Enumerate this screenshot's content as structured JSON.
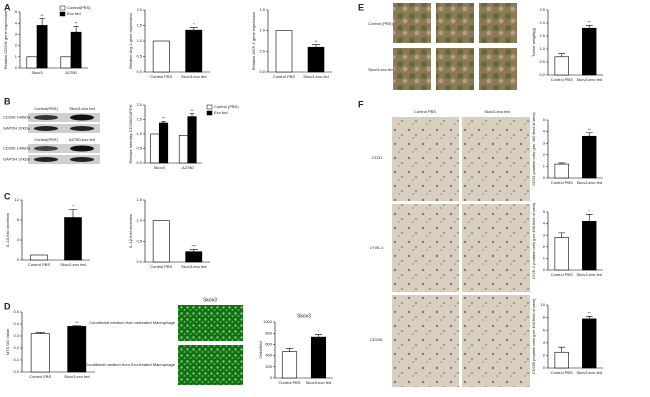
{
  "panel_labels": [
    "A",
    "B",
    "C",
    "D",
    "E",
    "F"
  ],
  "blot_labels": [
    "Control(PBS)",
    "Skov3-exo fed",
    "CD206 140kDa",
    "GAPDH 37kDa",
    "Control(PBS)",
    "A2780-exo fed",
    "CD206 140kDa",
    "GAPDH 37kDa"
  ],
  "fluorescence": {
    "title": "Skov3",
    "captions": [
      "Conditional medium from untreated Macrophage",
      "Conditional medium from Exo-treated Macrophage"
    ]
  },
  "tumor_labels": [
    "Control (PBS)",
    "Skov3-exo fed"
  ],
  "ihc": {
    "columns": [
      "Control PBS",
      "Skov3-exo fed"
    ],
    "rows": [
      "CD31",
      "LYVE-1",
      "CD206"
    ]
  },
  "chart_data": [
    {
      "type": "bar",
      "ylabel": "Relative CD206 gene expression",
      "categories": [
        "Skov3",
        "A2780"
      ],
      "series": [
        {
          "name": "Control(PBS)",
          "color": "#ffffff",
          "values": [
            1,
            1
          ],
          "errors": [
            0,
            0
          ]
        },
        {
          "name": "Exo fed",
          "color": "#000000",
          "values": [
            3.8,
            3.2
          ],
          "errors": [
            0.6,
            0.5
          ]
        }
      ],
      "significance": [
        "**",
        "**"
      ],
      "ylim": [
        0,
        5
      ],
      "yticks": [
        0,
        1,
        2,
        3,
        4,
        5
      ]
    },
    {
      "type": "bar",
      "ylabel": "Relative Arg-1 gene expression",
      "categories": [
        "Control PBS",
        "Skov3-exo fed"
      ],
      "values": [
        1,
        1.35
      ],
      "errors": [
        0,
        0.08
      ],
      "colors": [
        "#ffffff",
        "#000000"
      ],
      "significance": "*",
      "ylim": [
        0,
        2
      ],
      "yticks": [
        {
          "value": 0,
          "label": "0.0"
        },
        {
          "value": 0.5,
          "label": "0.5"
        },
        {
          "value": 1,
          "label": "1.0"
        },
        {
          "value": 1.5,
          "label": "1.5"
        },
        {
          "value": 2,
          "label": "2.0"
        }
      ]
    },
    {
      "type": "bar",
      "ylabel": "Relative MCP-1 gene expression",
      "categories": [
        "Control PBS",
        "Skov3-exo fed"
      ],
      "values": [
        1,
        0.6
      ],
      "errors": [
        0,
        0.06
      ],
      "colors": [
        "#ffffff",
        "#000000"
      ],
      "significance": "**",
      "ylim": [
        0,
        1.5
      ],
      "yticks": [
        {
          "value": 0,
          "label": "0.0"
        },
        {
          "value": 0.5,
          "label": "0.5"
        },
        {
          "value": 1,
          "label": "1.0"
        },
        {
          "value": 1.5,
          "label": "1.5"
        }
      ]
    },
    {
      "type": "bar",
      "ylabel": "Relative intensity CD206/GAPDH",
      "categories": [
        "Skov3",
        "A2780"
      ],
      "series": [
        {
          "name": "Control (PBS)",
          "color": "#ffffff",
          "values": [
            1,
            0.95
          ],
          "errors": [
            0,
            0
          ]
        },
        {
          "name": "Exo fed",
          "color": "#000000",
          "values": [
            1.38,
            1.6
          ],
          "errors": [
            0.05,
            0.1
          ]
        }
      ],
      "significance": [
        "**",
        "**"
      ],
      "ylim": [
        0,
        2
      ],
      "yticks": [
        {
          "value": 0,
          "label": "0.0"
        },
        {
          "value": 0.5,
          "label": "0.5"
        },
        {
          "value": 1,
          "label": "1.0"
        },
        {
          "value": 1.5,
          "label": "1.5"
        },
        {
          "value": 2,
          "label": "2.0"
        }
      ]
    },
    {
      "type": "bar",
      "ylabel": "IL-10 fold secretion",
      "categories": [
        "Control PBS",
        "Skov3-exo fed"
      ],
      "values": [
        1,
        8.5
      ],
      "errors": [
        0,
        1.6
      ],
      "colors": [
        "#ffffff",
        "#000000"
      ],
      "significance": "*",
      "ylim": [
        0,
        12
      ],
      "yticks": [
        0,
        4,
        8,
        12
      ]
    },
    {
      "type": "bar",
      "ylabel": "IL-1β fold secretion",
      "categories": [
        "Control PBS",
        "Skov3-exo fed"
      ],
      "values": [
        1,
        0.25
      ],
      "errors": [
        0,
        0.05
      ],
      "colors": [
        "#ffffff",
        "#000000"
      ],
      "significance": "***",
      "ylim": [
        0,
        1.5
      ],
      "yticks": [
        {
          "value": 0,
          "label": "0.0"
        },
        {
          "value": 0.5,
          "label": "0.5"
        },
        {
          "value": 1,
          "label": "1.0"
        },
        {
          "value": 1.5,
          "label": "1.5"
        }
      ]
    },
    {
      "type": "bar",
      "ylabel": "MTS OD Value",
      "categories": [
        "Control PBS",
        "Skov3-exo fed"
      ],
      "values": [
        0.32,
        0.38
      ],
      "errors": [
        0.01,
        0.005
      ],
      "colors": [
        "#ffffff",
        "#000000"
      ],
      "significance": "**",
      "ylim": [
        0,
        0.5
      ],
      "yticks": [
        {
          "value": 0,
          "label": "0.0"
        },
        {
          "value": 0.1,
          "label": "0.1"
        },
        {
          "value": 0.2,
          "label": "0.2"
        },
        {
          "value": 0.3,
          "label": "0.3"
        },
        {
          "value": 0.4,
          "label": "0.4"
        },
        {
          "value": 0.5,
          "label": "0.5"
        }
      ]
    },
    {
      "type": "bar",
      "title": "Skov3",
      "ylabel": "Cells/field",
      "categories": [
        "Control PBS",
        "Skov3-exo fed"
      ],
      "values": [
        470,
        730
      ],
      "errors": [
        60,
        50
      ],
      "colors": [
        "#ffffff",
        "#000000"
      ],
      "significance": "*",
      "ylim": [
        0,
        1000
      ],
      "yticks": [
        0,
        200,
        400,
        600,
        800,
        1000
      ]
    },
    {
      "type": "bar",
      "ylabel": "Tumor weight(g)",
      "categories": [
        "Control PBS",
        "Skov3-exo fed"
      ],
      "values": [
        0.7,
        1.8
      ],
      "errors": [
        0.12,
        0.1
      ],
      "colors": [
        "#ffffff",
        "#000000"
      ],
      "significance": "**",
      "ylim": [
        0,
        2.5
      ],
      "yticks": [
        {
          "value": 0,
          "label": "0.0"
        },
        {
          "value": 0.5,
          "label": "0.5"
        },
        {
          "value": 1,
          "label": "1.0"
        },
        {
          "value": 1.5,
          "label": "1.5"
        },
        {
          "value": 2,
          "label": "2.0"
        },
        {
          "value": 2.5,
          "label": "2.5"
        }
      ]
    },
    {
      "type": "bar",
      "ylabel": "CD31 positive cells (per 400 field of view)",
      "categories": [
        "Control PBS",
        "Skov3-exo fed"
      ],
      "values": [
        1.2,
        3.6
      ],
      "errors": [
        0.1,
        0.3
      ],
      "colors": [
        "#ffffff",
        "#000000"
      ],
      "significance": "**",
      "ylim": [
        0,
        5
      ],
      "yticks": [
        0,
        1,
        2,
        3,
        4,
        5
      ]
    },
    {
      "type": "bar",
      "ylabel": "LYVE-1 positive cells (per 400 field of view)",
      "categories": [
        "Control PBS",
        "Skov3-exo fed"
      ],
      "values": [
        2.8,
        4.2
      ],
      "errors": [
        0.4,
        0.6
      ],
      "colors": [
        "#ffffff",
        "#000000"
      ],
      "significance": "*",
      "ylim": [
        0,
        5
      ],
      "yticks": [
        0,
        1,
        2,
        3,
        4,
        5
      ]
    },
    {
      "type": "bar",
      "ylabel": "CD206 positive cells (per 400 field of view)",
      "categories": [
        "Control PBS",
        "Skov3-exo fed"
      ],
      "values": [
        2.5,
        7.8
      ],
      "errors": [
        0.8,
        0.4
      ],
      "colors": [
        "#ffffff",
        "#000000"
      ],
      "significance": "**",
      "ylim": [
        0,
        10
      ],
      "yticks": [
        0,
        2,
        4,
        6,
        8,
        10
      ]
    }
  ]
}
